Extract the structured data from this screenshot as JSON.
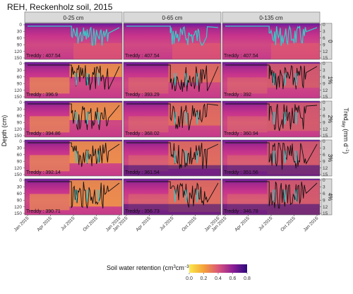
{
  "chart_data": {
    "type": "heatmap",
    "title": "REH, Reckenholz soil, 2015",
    "ylabel": "Depth (cm)",
    "right_axis_label": "Tred",
    "right_axis_label_sub": "day",
    "right_axis_label_unit": "(mm d",
    "right_axis_label_unit_sup": "−1",
    "right_axis_label_close": ")",
    "column_labels": [
      "0-25 cm",
      "0-65 cm",
      "0-135 cm"
    ],
    "row_labels": [
      "0",
      "1%",
      "2%",
      "3%",
      "4%"
    ],
    "x_tick_labels": [
      "Jan 2015",
      "Apr 2015",
      "Jul 2015",
      "Oct 2015",
      "Jan 2016"
    ],
    "depth_tick_labels": [
      "0",
      "30",
      "60",
      "90",
      "120",
      "150"
    ],
    "depth_range": [
      0,
      150
    ],
    "treddy_tick_labels": [
      "0",
      "3",
      "6",
      "9",
      "12",
      "15"
    ],
    "treddy_range": [
      0,
      15
    ],
    "treddy_values": [
      [
        "Treddy : 407.54",
        "Treddy : 407.54",
        "Treddy : 407.54"
      ],
      [
        "Treddy : 396.9",
        "Treddy : 393.29",
        "Treddy : 392"
      ],
      [
        "Treddy : 394.86",
        "Treddy : 368.02",
        "Treddy : 360.94"
      ],
      [
        "Treddy : 392.14",
        "Treddy : 361.54",
        "Treddy : 351.56"
      ],
      [
        "Treddy : 390.71",
        "Treddy : 356.73",
        "Treddy : 346.78"
      ]
    ],
    "legend": {
      "title": "Soil water retention (cm",
      "title_sup1": "3",
      "title_mid": "cm",
      "title_sup2": "−3",
      "title_close": ")",
      "ticks": [
        "0.0",
        "0.2",
        "0.4",
        "0.6",
        "0.8"
      ],
      "range": [
        0.0,
        0.8
      ],
      "placement": "bottom"
    },
    "colors": {
      "wet": "#2c0a7e",
      "mid": "#c8348c",
      "dry": "#f5a23a",
      "driest": "#fbe84c",
      "line_top_row": "#38c7c7",
      "line": "#111111",
      "strip_bg": "#d9d9d9"
    }
  }
}
